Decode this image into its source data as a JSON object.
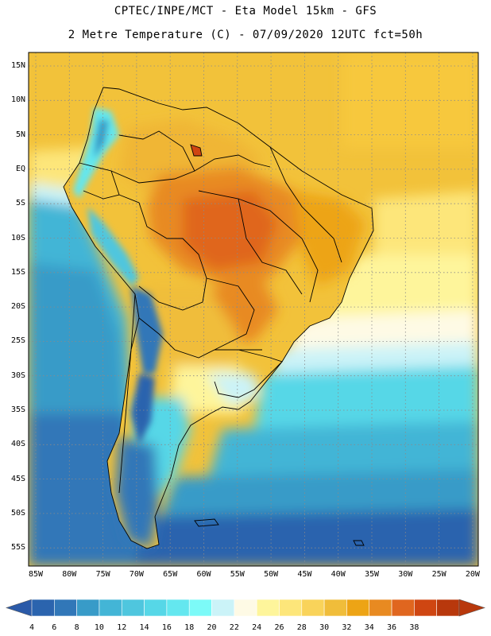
{
  "title": {
    "line1": "CPTEC/INPE/MCT -  Eta Model 15km - GFS",
    "line2": "2 Metre Temperature (C) - 07/09/2020 12UTC fct=50h"
  },
  "map": {
    "region": "South America",
    "variable": "2 Metre Temperature",
    "units": "C",
    "lat_labels": [
      "15N",
      "10N",
      "5N",
      "EQ",
      "5S",
      "10S",
      "15S",
      "20S",
      "25S",
      "30S",
      "35S",
      "40S",
      "45S",
      "50S",
      "55S"
    ],
    "lon_labels": [
      "85W",
      "80W",
      "75W",
      "70W",
      "65W",
      "60W",
      "55W",
      "50W",
      "45W",
      "40W",
      "35W",
      "30W",
      "25W",
      "20W"
    ]
  },
  "colorbar": {
    "ticks": [
      "4",
      "6",
      "8",
      "10",
      "12",
      "14",
      "16",
      "18",
      "20",
      "22",
      "24",
      "26",
      "28",
      "30",
      "32",
      "34",
      "36",
      "38"
    ],
    "colors": [
      "#2b64ae",
      "#3177b8",
      "#389bc8",
      "#43b5d6",
      "#4fc6de",
      "#56d7e7",
      "#64e7ef",
      "#7cfaf8",
      "#cbf3f8",
      "#fefae5",
      "#fef59b",
      "#fde67a",
      "#f9d35a",
      "#f0bd3a",
      "#eda415",
      "#e88a21",
      "#e0661f",
      "#cf4612",
      "#b8380c"
    ],
    "end_low_color": "#2b5aa8",
    "end_high_color": "#b8380c"
  }
}
